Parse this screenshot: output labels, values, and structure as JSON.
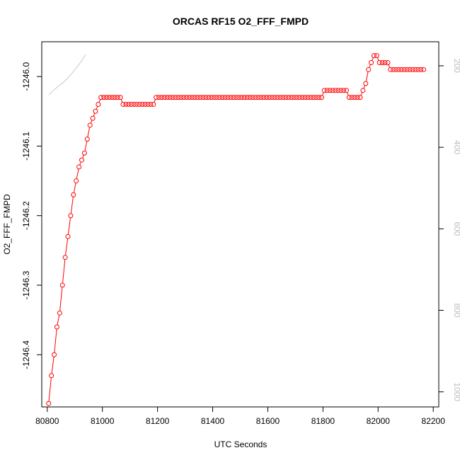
{
  "chart_data": {
    "type": "line",
    "title": "ORCAS RF15 O2_FFF_FMPD",
    "xlabel": "UTC Seconds",
    "ylabel": "O2_FFF_FMPD",
    "xlim": [
      80780,
      82220
    ],
    "ylim": [
      -1246.475,
      -1245.95
    ],
    "xticks": [
      80800,
      81000,
      81200,
      81400,
      81600,
      81800,
      82000,
      82200
    ],
    "yticks": [
      -1246.4,
      -1246.3,
      -1246.2,
      -1246.1,
      -1246.0
    ],
    "ytick_labels": [
      "-1246.4",
      "-1246.3",
      "-1246.2",
      "-1246.1",
      "-1246.0"
    ],
    "y2lim": [
      1037,
      141
    ],
    "y2ticks": [
      200,
      400,
      600,
      800,
      1000
    ],
    "y2tick_labels": [
      "200",
      "400",
      "600",
      "800",
      "1000"
    ],
    "grid": false,
    "series": [
      {
        "color": "#ff0000",
        "marker": "open-circle",
        "x": [
          80805,
          80815,
          80825,
          80835,
          80845,
          80855,
          80865,
          80875,
          80885,
          80895,
          80905,
          80915,
          80925,
          80935,
          80945,
          80955,
          80965,
          80975,
          80985,
          80995,
          81005,
          81015,
          81025,
          81035,
          81045,
          81055,
          81065,
          81075,
          81085,
          81095,
          81105,
          81115,
          81125,
          81135,
          81145,
          81155,
          81165,
          81175,
          81185,
          81195,
          81205,
          81215,
          81225,
          81235,
          81245,
          81255,
          81265,
          81275,
          81285,
          81295,
          81305,
          81315,
          81325,
          81335,
          81345,
          81355,
          81365,
          81375,
          81385,
          81395,
          81405,
          81415,
          81425,
          81435,
          81445,
          81455,
          81465,
          81475,
          81485,
          81495,
          81505,
          81515,
          81525,
          81535,
          81545,
          81555,
          81565,
          81575,
          81585,
          81595,
          81605,
          81615,
          81625,
          81635,
          81645,
          81655,
          81665,
          81675,
          81685,
          81695,
          81705,
          81715,
          81725,
          81735,
          81745,
          81755,
          81765,
          81775,
          81785,
          81795,
          81805,
          81815,
          81825,
          81835,
          81845,
          81855,
          81865,
          81875,
          81885,
          81895,
          81905,
          81915,
          81925,
          81935,
          81945,
          81955,
          81965,
          81975,
          81985,
          81995,
          82005,
          82015,
          82025,
          82035,
          82045,
          82055,
          82065,
          82075,
          82085,
          82095,
          82105,
          82115,
          82125,
          82135,
          82145,
          82155,
          82165
        ],
        "y": [
          -1246.47,
          -1246.43,
          -1246.4,
          -1246.36,
          -1246.34,
          -1246.3,
          -1246.26,
          -1246.23,
          -1246.2,
          -1246.17,
          -1246.15,
          -1246.13,
          -1246.12,
          -1246.11,
          -1246.09,
          -1246.07,
          -1246.06,
          -1246.05,
          -1246.04,
          -1246.03,
          -1246.03,
          -1246.03,
          -1246.03,
          -1246.03,
          -1246.03,
          -1246.03,
          -1246.03,
          -1246.04,
          -1246.04,
          -1246.04,
          -1246.04,
          -1246.04,
          -1246.04,
          -1246.04,
          -1246.04,
          -1246.04,
          -1246.04,
          -1246.04,
          -1246.04,
          -1246.03,
          -1246.03,
          -1246.03,
          -1246.03,
          -1246.03,
          -1246.03,
          -1246.03,
          -1246.03,
          -1246.03,
          -1246.03,
          -1246.03,
          -1246.03,
          -1246.03,
          -1246.03,
          -1246.03,
          -1246.03,
          -1246.03,
          -1246.03,
          -1246.03,
          -1246.03,
          -1246.03,
          -1246.03,
          -1246.03,
          -1246.03,
          -1246.03,
          -1246.03,
          -1246.03,
          -1246.03,
          -1246.03,
          -1246.03,
          -1246.03,
          -1246.03,
          -1246.03,
          -1246.03,
          -1246.03,
          -1246.03,
          -1246.03,
          -1246.03,
          -1246.03,
          -1246.03,
          -1246.03,
          -1246.03,
          -1246.03,
          -1246.03,
          -1246.03,
          -1246.03,
          -1246.03,
          -1246.03,
          -1246.03,
          -1246.03,
          -1246.03,
          -1246.03,
          -1246.03,
          -1246.03,
          -1246.03,
          -1246.03,
          -1246.03,
          -1246.03,
          -1246.03,
          -1246.03,
          -1246.03,
          -1246.02,
          -1246.02,
          -1246.02,
          -1246.02,
          -1246.02,
          -1246.02,
          -1246.02,
          -1246.02,
          -1246.02,
          -1246.03,
          -1246.03,
          -1246.03,
          -1246.03,
          -1246.03,
          -1246.02,
          -1246.01,
          -1245.99,
          -1245.98,
          -1245.97,
          -1245.97,
          -1245.98,
          -1245.98,
          -1245.98,
          -1245.98,
          -1245.99,
          -1245.99,
          -1245.99,
          -1245.99,
          -1245.99,
          -1245.99,
          -1245.99,
          -1245.99,
          -1245.99,
          -1245.99,
          -1245.99,
          -1245.99,
          -1245.99
        ]
      },
      {
        "color": "#c8c8c8",
        "marker": "none",
        "axis": "right",
        "x": [
          80805,
          80820,
          80840,
          80860,
          80880,
          80900,
          80920,
          80940
        ],
        "y2": [
          272,
          262,
          250,
          240,
          226,
          210,
          192,
          172
        ]
      }
    ]
  }
}
